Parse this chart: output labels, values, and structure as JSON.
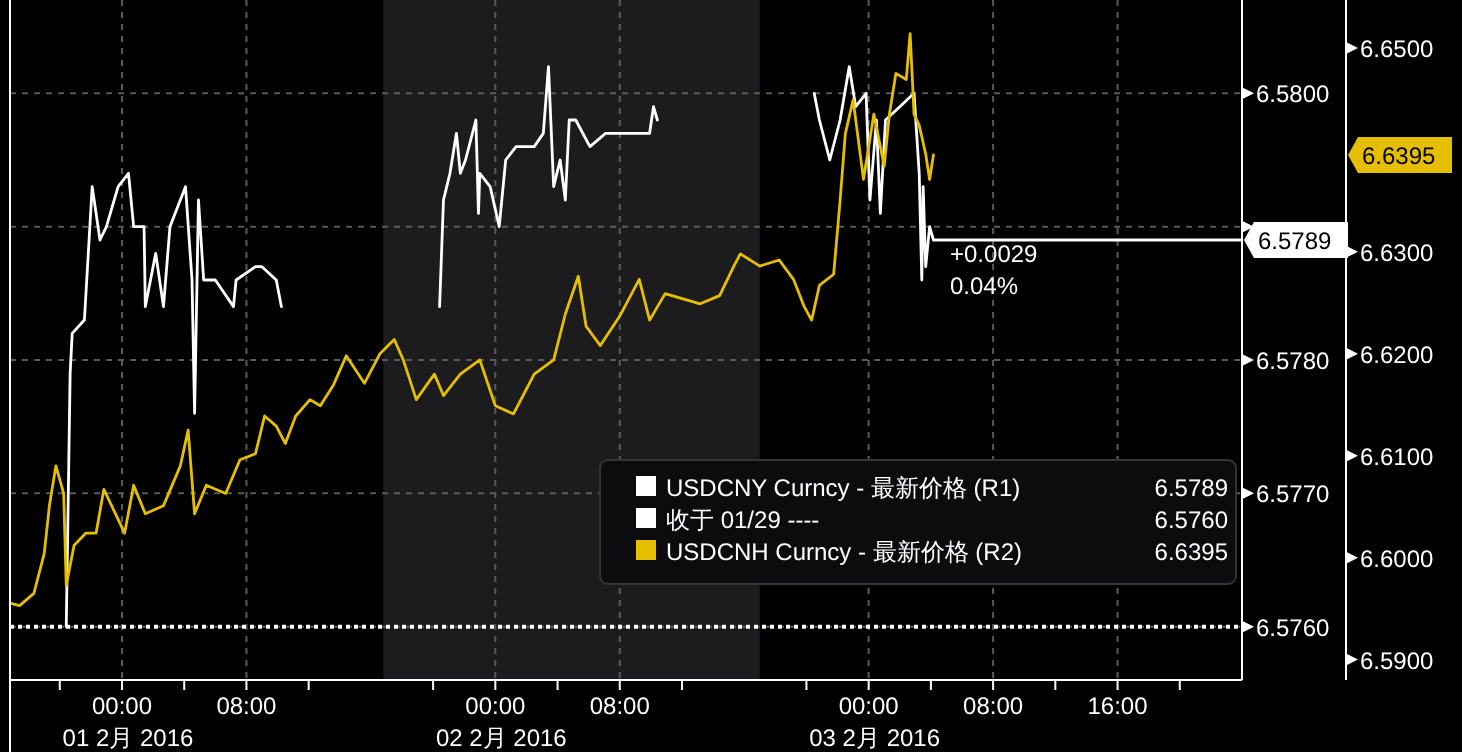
{
  "chart_data": {
    "type": "line",
    "xlim": [
      "2016-01-31T16:48",
      "2016-02-04T00:00"
    ],
    "ylim": [
      6.5756,
      6.5807
    ],
    "y2lim": [
      6.588,
      6.6547
    ],
    "xticks": [
      {
        "value": "2016-01-31T20:00",
        "label": null
      },
      {
        "value": "2016-02-01T00:00",
        "label": "00:00\n01 2月 2016"
      },
      {
        "value": "2016-02-01T04:00",
        "label": null
      },
      {
        "value": "2016-02-01T08:00",
        "label": "08:00"
      },
      {
        "value": "2016-02-01T12:00",
        "label": null
      },
      {
        "value": "2016-02-01T20:00",
        "label": null
      },
      {
        "value": "2016-02-02T00:00",
        "label": "00:00\n02 2月 2016"
      },
      {
        "value": "2016-02-02T04:00",
        "label": null
      },
      {
        "value": "2016-02-02T08:00",
        "label": "08:00"
      },
      {
        "value": "2016-02-02T12:00",
        "label": null
      },
      {
        "value": "2016-02-02T20:00",
        "label": null
      },
      {
        "value": "2016-02-03T00:00",
        "label": "00:00\n03 2月 2016"
      },
      {
        "value": "2016-02-03T04:00",
        "label": null
      },
      {
        "value": "2016-02-03T08:00",
        "label": "08:00"
      },
      {
        "value": "2016-02-03T12:00",
        "label": null
      },
      {
        "value": "2016-02-03T16:00",
        "label": "16:00"
      },
      {
        "value": "2016-02-03T20:00",
        "label": null
      }
    ],
    "yticks": [
      {
        "value": 6.576,
        "label": "6.5760"
      },
      {
        "value": 6.577,
        "label": "6.5770"
      },
      {
        "value": 6.578,
        "label": "6.5780"
      },
      {
        "value": 6.579,
        "label": null
      },
      {
        "value": 6.58,
        "label": "6.5800"
      }
    ],
    "y2ticks": [
      {
        "value": 6.59,
        "label": "6.5900"
      },
      {
        "value": 6.6,
        "label": "6.6000"
      },
      {
        "value": 6.61,
        "label": "6.6100"
      },
      {
        "value": 6.62,
        "label": "6.6200"
      },
      {
        "value": 6.63,
        "label": "6.6300"
      },
      {
        "value": 6.65,
        "label": "6.6500"
      }
    ],
    "grid": true,
    "legend": "bottom right",
    "bands": [
      {
        "axis": "x",
        "from": "2016-02-01T16:48",
        "to": "2016-02-02T17:00",
        "color": "#1c1c1f"
      }
    ],
    "ref_lines": [
      {
        "axis": "y",
        "value": 6.576,
        "label": "收于 01/29 ----",
        "color": "#ffffff",
        "line_style": "dotted"
      }
    ],
    "annotations": [
      "+0.0029",
      "0.04%",
      "6.5789",
      "6.5760",
      "6.6395",
      "6.5789",
      "6.6395"
    ],
    "series": [
      {
        "name": "USDCNY Curncy - 最新价格 (R1)",
        "color": "#ffffff",
        "axis": "y",
        "x": [
          "2016-01-31T20:25",
          "2016-01-31T20:40",
          "2016-01-31T20:48",
          "2016-01-31T21:35",
          "2016-01-31T21:50",
          "2016-01-31T22:05",
          "2016-01-31T22:35",
          "2016-01-31T23:00",
          "2016-01-31T23:45",
          "2016-02-01T00:25",
          "2016-02-01T00:45",
          "2016-02-01T01:25",
          "2016-02-01T01:30",
          "2016-02-01T02:10",
          "2016-02-01T02:40",
          "2016-02-01T03:05",
          "2016-02-01T03:45",
          "2016-02-01T04:05",
          "2016-02-01T04:30",
          "2016-02-01T04:40",
          "2016-02-01T04:55",
          "2016-02-01T05:15",
          "2016-02-01T06:00",
          "2016-02-01T07:10",
          "2016-02-01T07:20",
          "2016-02-01T08:35",
          "2016-02-01T09:00",
          "2016-02-01T09:55",
          "2016-02-01T10:15",
          "2016-02-01T20:25",
          "2016-02-01T20:40",
          "2016-02-01T21:05",
          "2016-02-01T21:30",
          "2016-02-01T21:45",
          "2016-02-01T22:05",
          "2016-02-01T22:45",
          "2016-02-01T22:55",
          "2016-02-01T23:00",
          "2016-02-01T23:40",
          "2016-02-02T00:15",
          "2016-02-02T00:40",
          "2016-02-02T01:20",
          "2016-02-02T02:30",
          "2016-02-02T03:05",
          "2016-02-02T03:25",
          "2016-02-02T03:45",
          "2016-02-02T04:10",
          "2016-02-02T04:30",
          "2016-02-02T04:45",
          "2016-02-02T05:10",
          "2016-02-02T06:05",
          "2016-02-02T07:05",
          "2016-02-02T08:00",
          "2016-02-02T08:55",
          "2016-02-02T09:55",
          "2016-02-02T10:10",
          "2016-02-02T10:25",
          "2016-02-02T20:30",
          "2016-02-02T20:50",
          "2016-02-02T21:30",
          "2016-02-02T22:10",
          "2016-02-02T22:45",
          "2016-02-02T23:10",
          "2016-02-02T23:50",
          "2016-02-03T00:05",
          "2016-02-03T00:30",
          "2016-02-03T00:45",
          "2016-02-03T01:05",
          "2016-02-03T02:00",
          "2016-02-03T02:55",
          "2016-02-03T03:15",
          "2016-02-03T03:25",
          "2016-02-03T03:30",
          "2016-02-03T03:40",
          "2016-02-03T03:55",
          "2016-02-03T04:10",
          "2016-02-04T00:00"
        ],
        "values": [
          6.576,
          6.5779,
          6.5782,
          6.5783,
          6.5788,
          6.5793,
          6.5789,
          6.579,
          6.5793,
          6.5794,
          6.579,
          6.579,
          6.5784,
          6.5788,
          6.5784,
          6.579,
          6.5792,
          6.5793,
          6.5786,
          6.5776,
          6.5792,
          6.5786,
          6.5786,
          6.5784,
          6.5786,
          6.5787,
          6.5787,
          6.5786,
          6.5784,
          6.5784,
          6.5792,
          6.5794,
          6.5797,
          6.5794,
          6.5795,
          6.5798,
          6.5791,
          6.5794,
          6.5793,
          6.579,
          6.5795,
          6.5796,
          6.5796,
          6.5797,
          6.5802,
          6.5793,
          6.5795,
          6.5792,
          6.5798,
          6.5798,
          6.5796,
          6.5797,
          6.5797,
          6.5797,
          6.5797,
          6.5799,
          6.5798,
          6.58,
          6.5798,
          6.5795,
          6.5798,
          6.5802,
          6.5799,
          6.58,
          6.5792,
          6.5798,
          6.5791,
          6.5798,
          6.5799,
          6.58,
          6.5794,
          6.5786,
          6.5793,
          6.5787,
          6.579,
          6.5789,
          6.5789
        ]
      },
      {
        "name": "USDCNH Curncy - 最新价格 (R2)",
        "color": "#e6be00",
        "axis": "y2",
        "x": [
          "2016-01-31T16:55",
          "2016-01-31T17:25",
          "2016-01-31T18:20",
          "2016-01-31T19:00",
          "2016-01-31T19:20",
          "2016-01-31T19:45",
          "2016-01-31T20:15",
          "2016-01-31T20:25",
          "2016-01-31T20:55",
          "2016-01-31T21:40",
          "2016-01-31T22:20",
          "2016-01-31T22:50",
          "2016-01-31T23:35",
          "2016-02-01T00:10",
          "2016-02-01T00:45",
          "2016-02-01T01:30",
          "2016-02-01T02:40",
          "2016-02-01T03:45",
          "2016-02-01T04:15",
          "2016-02-01T04:40",
          "2016-02-01T05:25",
          "2016-02-01T06:40",
          "2016-02-01T07:35",
          "2016-02-01T08:35",
          "2016-02-01T09:10",
          "2016-02-01T09:55",
          "2016-02-01T10:30",
          "2016-02-01T11:10",
          "2016-02-01T12:05",
          "2016-02-01T12:45",
          "2016-02-01T13:35",
          "2016-02-01T14:25",
          "2016-02-01T15:35",
          "2016-02-01T16:35",
          "2016-02-01T17:30",
          "2016-02-01T18:05",
          "2016-02-01T18:55",
          "2016-02-01T20:05",
          "2016-02-01T20:40",
          "2016-02-01T21:45",
          "2016-02-01T23:00",
          "2016-02-02T00:00",
          "2016-02-02T01:10",
          "2016-02-02T02:30",
          "2016-02-02T03:45",
          "2016-02-02T04:30",
          "2016-02-02T05:20",
          "2016-02-02T05:50",
          "2016-02-02T06:45",
          "2016-02-02T08:00",
          "2016-02-02T09:15",
          "2016-02-02T09:55",
          "2016-02-02T10:55",
          "2016-02-02T13:10",
          "2016-02-02T14:25",
          "2016-02-02T15:20",
          "2016-02-02T15:45",
          "2016-02-02T17:00",
          "2016-02-02T18:15",
          "2016-02-02T19:10",
          "2016-02-02T19:50",
          "2016-02-02T20:20",
          "2016-02-02T20:50",
          "2016-02-02T21:45",
          "2016-02-02T22:10",
          "2016-02-02T22:30",
          "2016-02-02T23:00",
          "2016-02-02T23:40",
          "2016-02-03T00:20",
          "2016-02-03T01:00",
          "2016-02-03T01:20",
          "2016-02-03T01:45",
          "2016-02-03T02:25",
          "2016-02-03T02:40",
          "2016-02-03T02:55",
          "2016-02-03T03:15",
          "2016-02-03T03:40",
          "2016-02-03T03:55",
          "2016-02-03T04:10"
        ],
        "values": [
          6.5955,
          6.5953,
          6.5965,
          6.6004,
          6.6051,
          6.609,
          6.6063,
          6.5973,
          6.6012,
          6.6024,
          6.6024,
          6.6067,
          6.6043,
          6.6024,
          6.6071,
          6.6043,
          6.6051,
          6.609,
          6.6125,
          6.6043,
          6.6071,
          6.6063,
          6.6096,
          6.6102,
          6.6139,
          6.6129,
          6.6112,
          6.6139,
          6.6155,
          6.6149,
          6.6169,
          6.6198,
          6.6171,
          6.62,
          6.6214,
          6.6194,
          6.6155,
          6.618,
          6.6159,
          6.618,
          6.6194,
          6.6149,
          6.6141,
          6.618,
          6.6194,
          6.6239,
          6.6276,
          6.6227,
          6.6208,
          6.6237,
          6.6273,
          6.6233,
          6.6259,
          6.6249,
          6.6257,
          6.6286,
          6.6298,
          6.6286,
          6.6292,
          6.6273,
          6.6247,
          6.6233,
          6.6267,
          6.6278,
          6.6351,
          6.6416,
          6.6449,
          6.6371,
          6.6435,
          6.6384,
          6.6435,
          6.6475,
          6.6469,
          6.6514,
          6.6435,
          6.6424,
          6.6396,
          6.6371,
          6.6395
        ]
      }
    ]
  }
}
